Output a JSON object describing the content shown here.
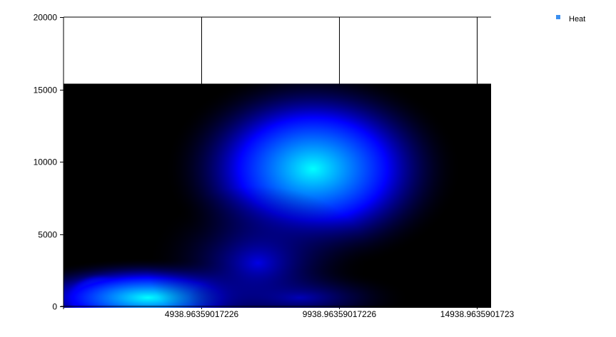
{
  "chart_data": {
    "type": "heatmap",
    "title": "",
    "xlabel": "",
    "ylabel": "",
    "xlim": [
      -61.0364,
      15000
    ],
    "ylim": [
      0,
      20000
    ],
    "x_ticks": [
      {
        "value": 4938.96359017226,
        "label": "4938.96359017226"
      },
      {
        "value": 9938.96359017226,
        "label": "9938.96359017226"
      },
      {
        "value": 14938.9635901723,
        "label": "14938.9635901723"
      }
    ],
    "y_ticks": [
      {
        "value": 0,
        "label": "0"
      },
      {
        "value": 5000,
        "label": "5000"
      },
      {
        "value": 10000,
        "label": "10000"
      },
      {
        "value": 15000,
        "label": "15000"
      },
      {
        "value": 20000,
        "label": "20000"
      }
    ],
    "grid": {
      "vertical": true,
      "horizontal": false
    },
    "heat_extent": {
      "x": [
        -61.0364,
        15000
      ],
      "y": [
        -100,
        15400
      ]
    },
    "background_color": "#000000",
    "colormap": [
      "#000000",
      "#0000ff",
      "#00ffff",
      "#00ff00",
      "#ffff00",
      "#ff0000"
    ],
    "hotspots": [
      {
        "x": 1250,
        "y": 500,
        "intensity": 1.0
      },
      {
        "x": 3000,
        "y": 600,
        "intensity": 0.3
      },
      {
        "x": 8500,
        "y": 600,
        "intensity": 0.12
      },
      {
        "x": 9000,
        "y": 9500,
        "intensity": 0.35
      },
      {
        "x": 7000,
        "y": 3000,
        "intensity": 0.12
      }
    ],
    "legend": {
      "position": "top-right",
      "entries": [
        {
          "label": "Heat",
          "color": "#3b8ff0"
        }
      ]
    }
  }
}
